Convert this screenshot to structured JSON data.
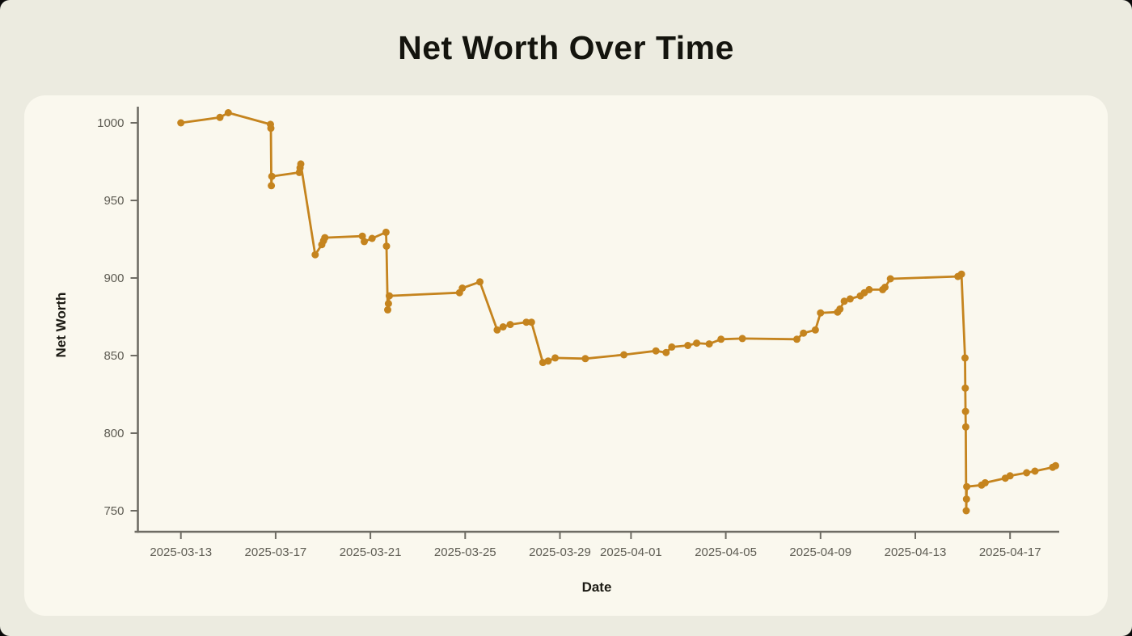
{
  "page_title": "Net Worth Over Time",
  "chart_data": {
    "type": "line",
    "title": "Net Worth Over Time",
    "xlabel": "Date",
    "ylabel": "Net Worth",
    "grid": false,
    "legend_position": "none",
    "marker": "circle",
    "line_color": "#C5841E",
    "axis_color": "#6E6C64",
    "tick_label_color": "#5E5C53",
    "x_axis_note": "day = days after 2025-03-13",
    "x_ticks": [
      {
        "label": "2025-03-13",
        "day": 0
      },
      {
        "label": "2025-03-17",
        "day": 4
      },
      {
        "label": "2025-03-21",
        "day": 8
      },
      {
        "label": "2025-03-25",
        "day": 12
      },
      {
        "label": "2025-03-29",
        "day": 16
      },
      {
        "label": "2025-04-01",
        "day": 19
      },
      {
        "label": "2025-04-05",
        "day": 23
      },
      {
        "label": "2025-04-09",
        "day": 27
      },
      {
        "label": "2025-04-13",
        "day": 31
      },
      {
        "label": "2025-04-17",
        "day": 35
      }
    ],
    "y_ticks": [
      1000,
      950,
      900,
      850,
      800,
      750
    ],
    "ylim": [
      743,
      1011
    ],
    "series": [
      {
        "name": "Net Worth",
        "points": [
          [
            0.0,
            1000
          ],
          [
            1.65,
            1003.5
          ],
          [
            2.0,
            1006.5
          ],
          [
            3.78,
            999
          ],
          [
            3.8,
            996.5
          ],
          [
            3.82,
            959.5
          ],
          [
            3.84,
            965.5
          ],
          [
            5.0,
            968
          ],
          [
            5.03,
            971
          ],
          [
            5.06,
            973.5
          ],
          [
            5.67,
            915
          ],
          [
            5.95,
            921.5
          ],
          [
            6.02,
            924
          ],
          [
            6.08,
            926
          ],
          [
            7.66,
            927
          ],
          [
            7.74,
            923.5
          ],
          [
            8.07,
            925.5
          ],
          [
            8.66,
            929.5
          ],
          [
            8.68,
            920.5
          ],
          [
            8.73,
            879.5
          ],
          [
            8.76,
            883.5
          ],
          [
            8.8,
            888.5
          ],
          [
            11.76,
            890.5
          ],
          [
            11.88,
            893.5
          ],
          [
            12.62,
            897.5
          ],
          [
            13.35,
            866.5
          ],
          [
            13.6,
            868.5
          ],
          [
            13.9,
            870
          ],
          [
            14.58,
            871.5
          ],
          [
            14.8,
            871.5
          ],
          [
            15.28,
            845.5
          ],
          [
            15.5,
            846.5
          ],
          [
            15.8,
            848.5
          ],
          [
            17.07,
            848
          ],
          [
            18.7,
            850.5
          ],
          [
            20.05,
            853
          ],
          [
            20.48,
            852
          ],
          [
            20.72,
            855.5
          ],
          [
            21.4,
            856.5
          ],
          [
            21.77,
            858
          ],
          [
            22.3,
            857.5
          ],
          [
            22.8,
            860.5
          ],
          [
            23.7,
            861
          ],
          [
            26.0,
            860.5
          ],
          [
            26.28,
            864.5
          ],
          [
            26.78,
            866.5
          ],
          [
            27.0,
            877.5
          ],
          [
            27.72,
            878
          ],
          [
            27.82,
            880
          ],
          [
            28.0,
            885
          ],
          [
            28.25,
            886.5
          ],
          [
            28.68,
            888.5
          ],
          [
            28.85,
            890.5
          ],
          [
            29.05,
            892.5
          ],
          [
            29.62,
            892.5
          ],
          [
            29.72,
            894
          ],
          [
            29.95,
            899.5
          ],
          [
            32.8,
            901
          ],
          [
            32.95,
            902.5
          ],
          [
            33.1,
            848.5
          ],
          [
            33.11,
            829
          ],
          [
            33.12,
            814
          ],
          [
            33.13,
            804
          ],
          [
            33.15,
            750
          ],
          [
            33.16,
            757.5
          ],
          [
            33.17,
            765.5
          ],
          [
            33.8,
            766.5
          ],
          [
            33.95,
            768
          ],
          [
            34.8,
            771
          ],
          [
            35.0,
            772.5
          ],
          [
            35.7,
            774.5
          ],
          [
            36.05,
            775.5
          ],
          [
            36.8,
            778
          ],
          [
            36.92,
            779
          ]
        ]
      }
    ]
  }
}
